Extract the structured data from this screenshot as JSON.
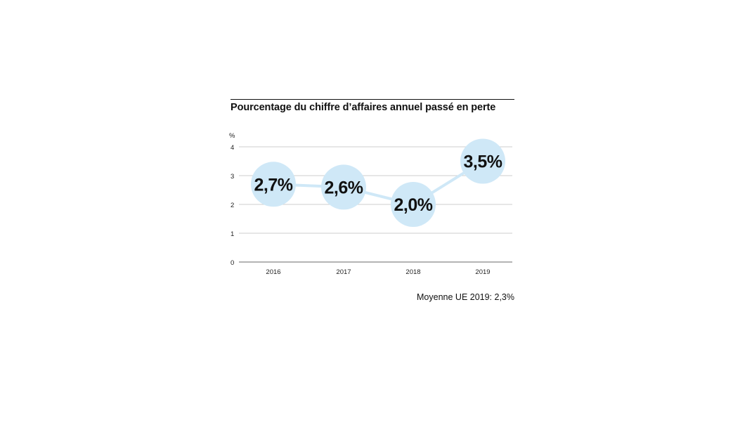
{
  "chart_data": {
    "type": "line",
    "title": "Pourcentage du chiffre d’affaires annuel passé en perte",
    "unit_label": "%",
    "categories": [
      "2016",
      "2017",
      "2018",
      "2019"
    ],
    "values": [
      2.7,
      2.6,
      2.0,
      3.5
    ],
    "data_labels": [
      "2,7%",
      "2,6%",
      "2,0%",
      "3,5%"
    ],
    "yticks": [
      "0",
      "1",
      "2",
      "3",
      "4"
    ],
    "ylim": [
      0,
      4
    ],
    "grid": true,
    "annotation": "Moyenne UE 2019: 2,3%",
    "colors": {
      "line": "#cfe8f7",
      "bubble": "#cfe8f7",
      "grid": "#bdbdbd",
      "axis": "#888888"
    }
  }
}
